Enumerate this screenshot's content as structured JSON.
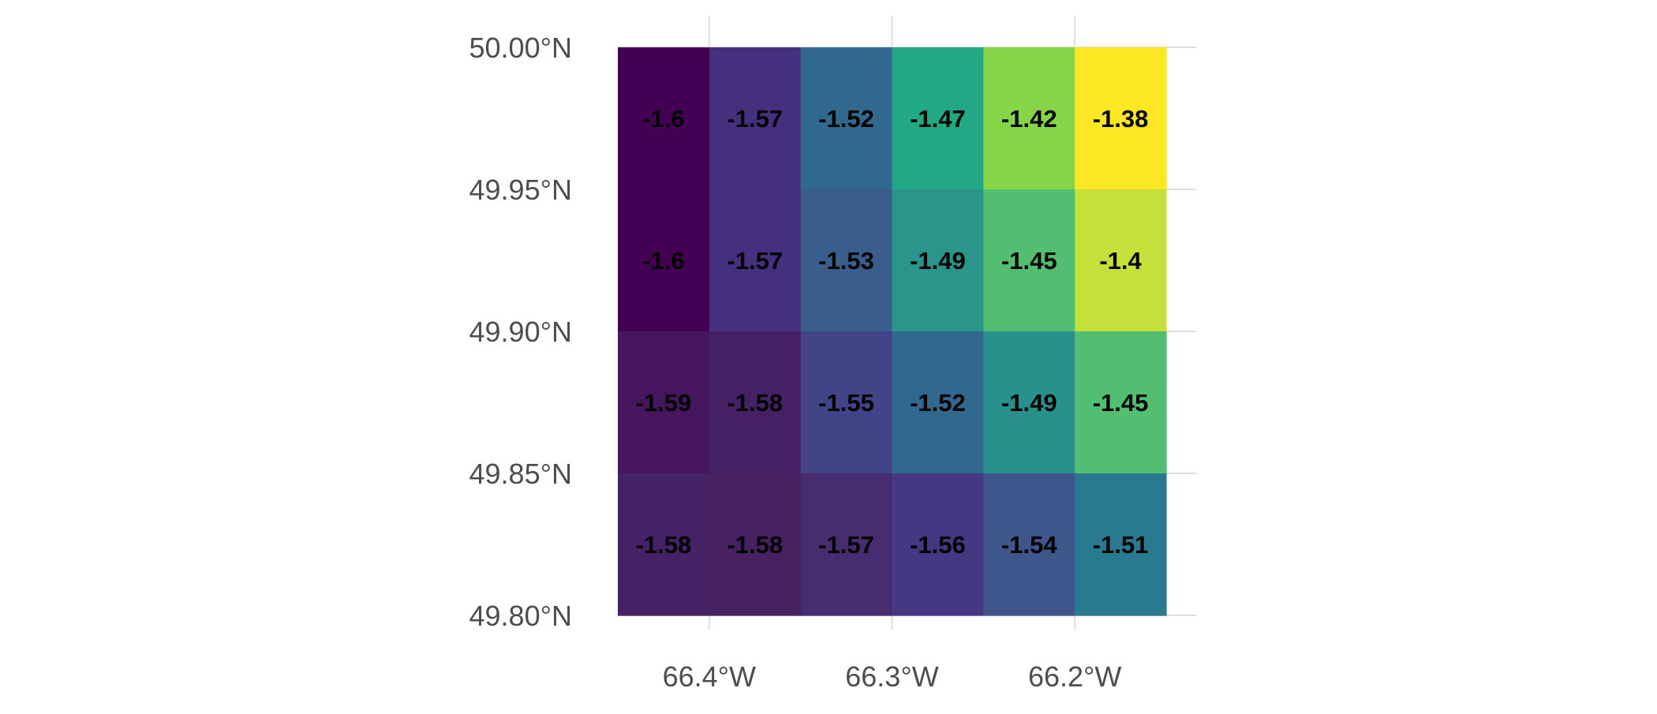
{
  "chart_data": {
    "type": "heatmap",
    "title": "",
    "xlabel": "",
    "ylabel": "",
    "x_tick_labels": [
      "66.4°W",
      "66.3°W",
      "66.2°W"
    ],
    "x_tick_values": [
      -66.4,
      -66.3,
      -66.2
    ],
    "y_tick_labels": [
      "50.00°N",
      "49.95°N",
      "49.90°N",
      "49.85°N",
      "49.80°N"
    ],
    "y_tick_values": [
      50.0,
      49.95,
      49.9,
      49.85,
      49.8
    ],
    "xlim": [
      -66.45,
      -66.15
    ],
    "ylim": [
      49.8,
      50.0
    ],
    "grid": true,
    "legend": "none",
    "colormap": "viridis",
    "cell_width_deg": 0.05,
    "cell_height_deg": 0.05,
    "x_centers": [
      -66.425,
      -66.375,
      -66.325,
      -66.275,
      -66.225,
      -66.175
    ],
    "y_centers": [
      49.975,
      49.925,
      49.875,
      49.825
    ],
    "values": [
      [
        -1.6,
        -1.57,
        -1.52,
        -1.47,
        -1.42,
        -1.38
      ],
      [
        -1.6,
        -1.57,
        -1.53,
        -1.49,
        -1.45,
        -1.4
      ],
      [
        -1.59,
        -1.58,
        -1.55,
        -1.52,
        -1.49,
        -1.45
      ],
      [
        -1.58,
        -1.58,
        -1.57,
        -1.56,
        -1.54,
        -1.51
      ]
    ],
    "cell_colors": [
      [
        "#440154",
        "#46307e",
        "#31688e",
        "#22a884",
        "#86d549",
        "#fde725"
      ],
      [
        "#440154",
        "#46307e",
        "#3a5e8c",
        "#2a958b",
        "#52be71",
        "#c5e03a"
      ],
      [
        "#45165e",
        "#452064",
        "#414487",
        "#31688e",
        "#2a908b",
        "#52be71"
      ],
      [
        "#452266",
        "#47205f",
        "#472c6f",
        "#453781",
        "#3e568a",
        "#297a8e"
      ]
    ],
    "value_labels": [
      [
        "-1.6",
        "-1.57",
        "-1.52",
        "-1.47",
        "-1.42",
        "-1.38"
      ],
      [
        "-1.6",
        "-1.57",
        "-1.53",
        "-1.49",
        "-1.45",
        "-1.4"
      ],
      [
        "-1.59",
        "-1.58",
        "-1.55",
        "-1.52",
        "-1.49",
        "-1.45"
      ],
      [
        "-1.58",
        "-1.58",
        "-1.57",
        "-1.56",
        "-1.54",
        "-1.51"
      ]
    ],
    "colors": {
      "grid": "#dedede",
      "tick_text": "#4d4d4d",
      "label_text": "#000000",
      "background": "#ffffff"
    }
  }
}
